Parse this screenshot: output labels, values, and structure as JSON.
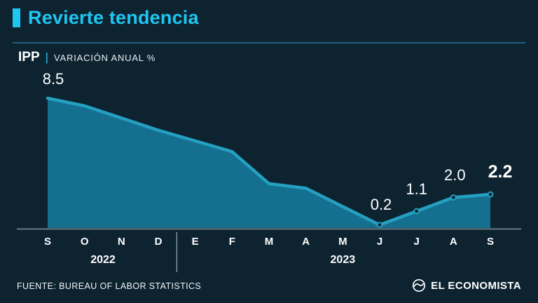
{
  "header": {
    "title": "Revierte tendencia",
    "kicker_bold": "IPP",
    "kicker_sep": "|",
    "kicker_rest": "VARIACIÓN ANUAL %"
  },
  "footer": {
    "source": "FUENTE: BUREAU OF LABOR STATISTICS",
    "brand": "EL ECONOMISTA"
  },
  "colors": {
    "background": "#0d2330",
    "accent_cyan": "#1ec6f2",
    "title_rule": "#1f637c",
    "area_fill": "#156f8e",
    "line": "#24a0c2",
    "axis": "#8296a3",
    "text": "#ffffff"
  },
  "chart_data": {
    "type": "area",
    "title": "Revierte tendencia",
    "subtitle": "IPP | VARIACIÓN ANUAL %",
    "ylabel": "Variación anual %",
    "ylim": [
      0,
      9
    ],
    "grid": false,
    "x_labels": [
      "S",
      "O",
      "N",
      "D",
      "E",
      "F",
      "M",
      "A",
      "M",
      "J",
      "J",
      "A",
      "S"
    ],
    "year_groups": [
      {
        "label": "2022",
        "from": 0,
        "to": 3
      },
      {
        "label": "2023",
        "from": 4,
        "to": 12
      }
    ],
    "values": [
      8.5,
      8.0,
      7.2,
      6.4,
      5.7,
      5.0,
      2.9,
      2.6,
      1.4,
      0.2,
      1.1,
      2.0,
      2.2
    ],
    "point_labels": [
      {
        "index": 0,
        "text": "8.5",
        "bold": false
      },
      {
        "index": 9,
        "text": "0.2",
        "bold": false
      },
      {
        "index": 10,
        "text": "1.1",
        "bold": false
      },
      {
        "index": 11,
        "text": "2.0",
        "bold": false
      },
      {
        "index": 12,
        "text": "2.2",
        "bold": true
      }
    ],
    "marker_indices": [
      9,
      10,
      11,
      12
    ]
  }
}
